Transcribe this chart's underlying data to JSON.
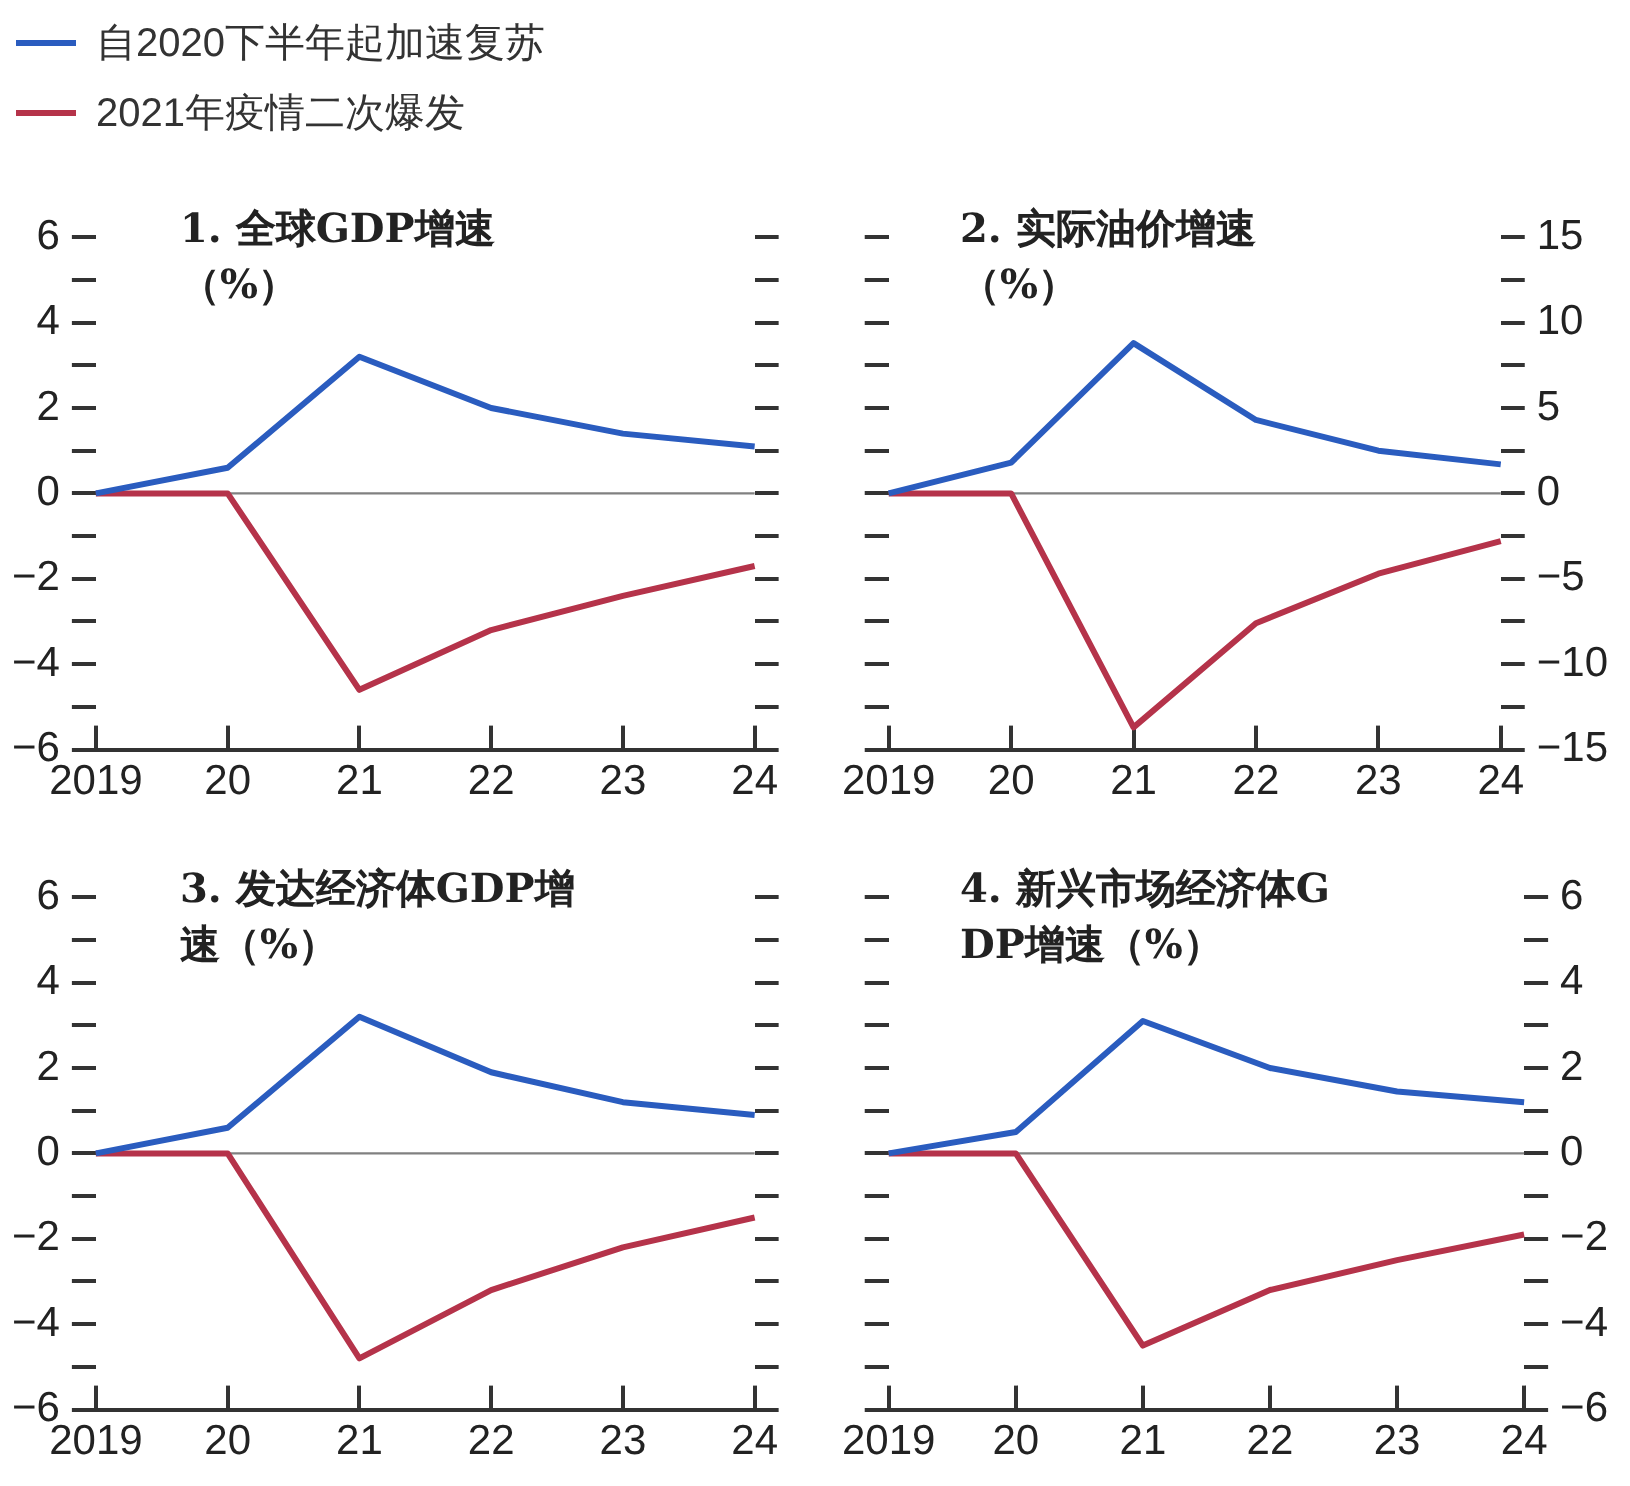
{
  "chart_data": [
    {
      "type": "line",
      "title": "1.  全球GDP增速（%）",
      "categories": [
        "2019",
        "20",
        "21",
        "22",
        "23",
        "24"
      ],
      "legend": "top left",
      "grid": false,
      "series": [
        {
          "name": "自2020下半年起加速复苏",
          "color": "#2a5cbf",
          "values": [
            0,
            0.6,
            3.2,
            2.0,
            1.4,
            1.1
          ]
        },
        {
          "name": "2021年疫情二次爆发",
          "color": "#b5334a",
          "values": [
            0,
            0,
            -4.6,
            -3.2,
            -2.4,
            -1.7
          ]
        }
      ],
      "ylim": [
        -6,
        6
      ],
      "yticks": [
        -6,
        {
          "value": -5,
          "label": null
        },
        -4,
        {
          "value": -3,
          "label": null
        },
        -2,
        {
          "value": -1,
          "label": null
        },
        0,
        {
          "value": 1,
          "label": null
        },
        2,
        {
          "value": 3,
          "label": null
        },
        4,
        {
          "value": 5,
          "label": null
        },
        6
      ],
      "ref_lines": [
        {
          "axis": "y",
          "value": 0,
          "color": "#808080"
        }
      ]
    },
    {
      "type": "line",
      "title": "2.  实际油价增速（%）",
      "categories": [
        "2019",
        "20",
        "21",
        "22",
        "23",
        "24"
      ],
      "grid": false,
      "series": [
        {
          "color": "#2a5cbf",
          "axis": "y2",
          "values": [
            0,
            1.8,
            8.8,
            4.3,
            2.5,
            1.7
          ]
        },
        {
          "color": "#b5334a",
          "axis": "y2",
          "values": [
            0,
            0,
            -13.7,
            -7.6,
            -4.7,
            -2.8
          ]
        }
      ],
      "y2lim": [
        -15,
        15
      ],
      "y2ticks": [
        -15,
        {
          "value": -12.5,
          "label": null
        },
        -10,
        {
          "value": -7.5,
          "label": null
        },
        -5,
        {
          "value": -2.5,
          "label": null
        },
        0,
        {
          "value": 2.5,
          "label": null
        },
        5,
        {
          "value": 7.5,
          "label": null
        },
        10,
        {
          "value": 12.5,
          "label": null
        },
        15
      ],
      "ref_lines": [
        {
          "axis": "y2",
          "value": 0,
          "color": "#808080"
        }
      ]
    },
    {
      "type": "line",
      "title": "3.  发达经济体GDP增速（%）",
      "categories": [
        "2019",
        "20",
        "21",
        "22",
        "23",
        "24"
      ],
      "grid": false,
      "series": [
        {
          "color": "#2a5cbf",
          "values": [
            0,
            0.6,
            3.2,
            1.9,
            1.2,
            0.9
          ]
        },
        {
          "color": "#b5334a",
          "values": [
            0,
            0,
            -4.8,
            -3.2,
            -2.2,
            -1.5
          ]
        }
      ],
      "ylim": [
        -6,
        6
      ],
      "yticks": [
        -6,
        {
          "value": -5,
          "label": null
        },
        -4,
        {
          "value": -3,
          "label": null
        },
        -2,
        {
          "value": -1,
          "label": null
        },
        0,
        {
          "value": 1,
          "label": null
        },
        2,
        {
          "value": 3,
          "label": null
        },
        4,
        {
          "value": 5,
          "label": null
        },
        6
      ],
      "ref_lines": [
        {
          "axis": "y",
          "value": 0,
          "color": "#808080"
        }
      ]
    },
    {
      "type": "line",
      "title": "4.  新兴市场经济体GDP增速（%）",
      "categories": [
        "2019",
        "20",
        "21",
        "22",
        "23",
        "24"
      ],
      "grid": false,
      "series": [
        {
          "color": "#2a5cbf",
          "axis": "y2",
          "values": [
            0,
            0.5,
            3.1,
            2.0,
            1.45,
            1.2
          ]
        },
        {
          "color": "#b5334a",
          "axis": "y2",
          "values": [
            0,
            0,
            -4.5,
            -3.2,
            -2.5,
            -1.9
          ]
        }
      ],
      "y2lim": [
        -6,
        6
      ],
      "y2ticks": [
        -6,
        {
          "value": -5,
          "label": null
        },
        -4,
        {
          "value": -3,
          "label": null
        },
        -2,
        {
          "value": -1,
          "label": null
        },
        0,
        {
          "value": 1,
          "label": null
        },
        2,
        {
          "value": 3,
          "label": null
        },
        4,
        {
          "value": 5,
          "label": null
        },
        6
      ],
      "ref_lines": [
        {
          "axis": "y2",
          "value": 0,
          "color": "#808080"
        }
      ]
    }
  ]
}
